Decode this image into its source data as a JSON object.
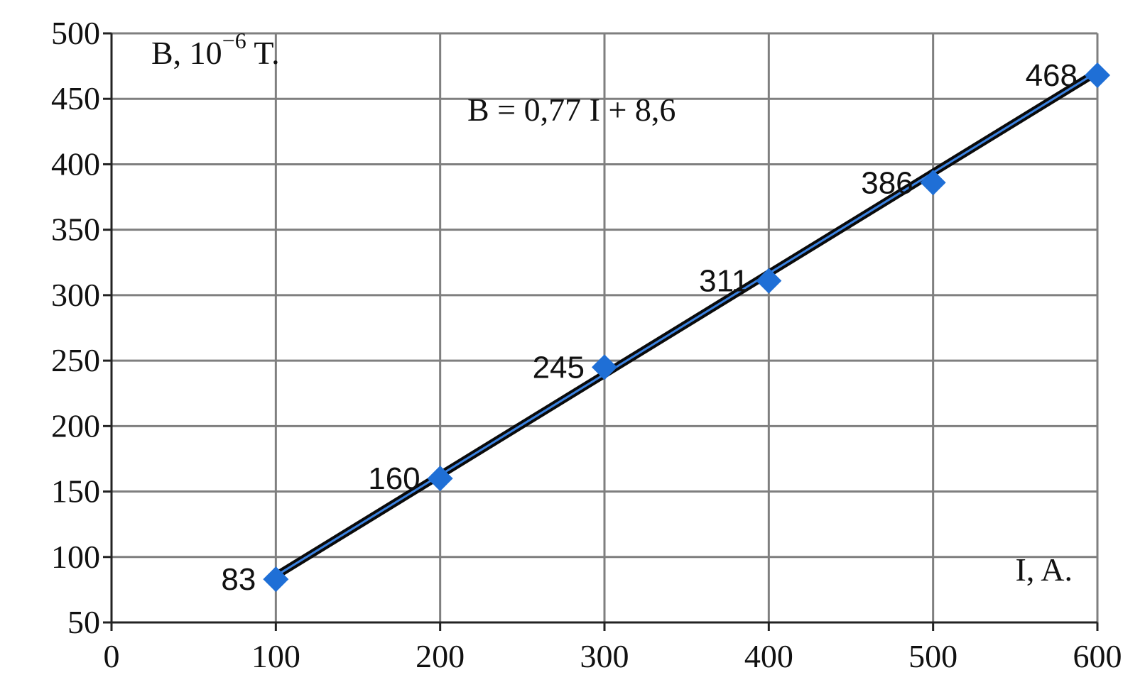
{
  "chart_data": {
    "type": "scatter",
    "xlim": [
      0,
      600
    ],
    "ylim": [
      50,
      500
    ],
    "x_ticks": [
      "0",
      "100",
      "200",
      "300",
      "400",
      "500",
      "600"
    ],
    "y_ticks": [
      "50",
      "100",
      "150",
      "200",
      "250",
      "300",
      "350",
      "400",
      "450",
      "500"
    ],
    "grid": true,
    "ylabel": "B, 10",
    "ylabel_exponent": "−6",
    "ylabel_unit": " T.",
    "xlabel": "I, A.",
    "equation": "B = 0,77 I + 8,6",
    "trendline": {
      "slope": 0.77,
      "intercept": 8.6,
      "x_range": [
        100,
        600
      ]
    },
    "series": [
      {
        "x": [
          100,
          200,
          300,
          400,
          500,
          600
        ],
        "y": [
          83,
          160,
          245,
          311,
          386,
          468
        ],
        "labels": [
          "83",
          "160",
          "245",
          "311",
          "386",
          "468"
        ]
      }
    ],
    "colors": {
      "marker": "#1f6fd6",
      "trendline": "#0a0a0a",
      "trend_inner": "#3b82e0",
      "grid": "#7f7f7f",
      "axis": "#222222"
    }
  }
}
